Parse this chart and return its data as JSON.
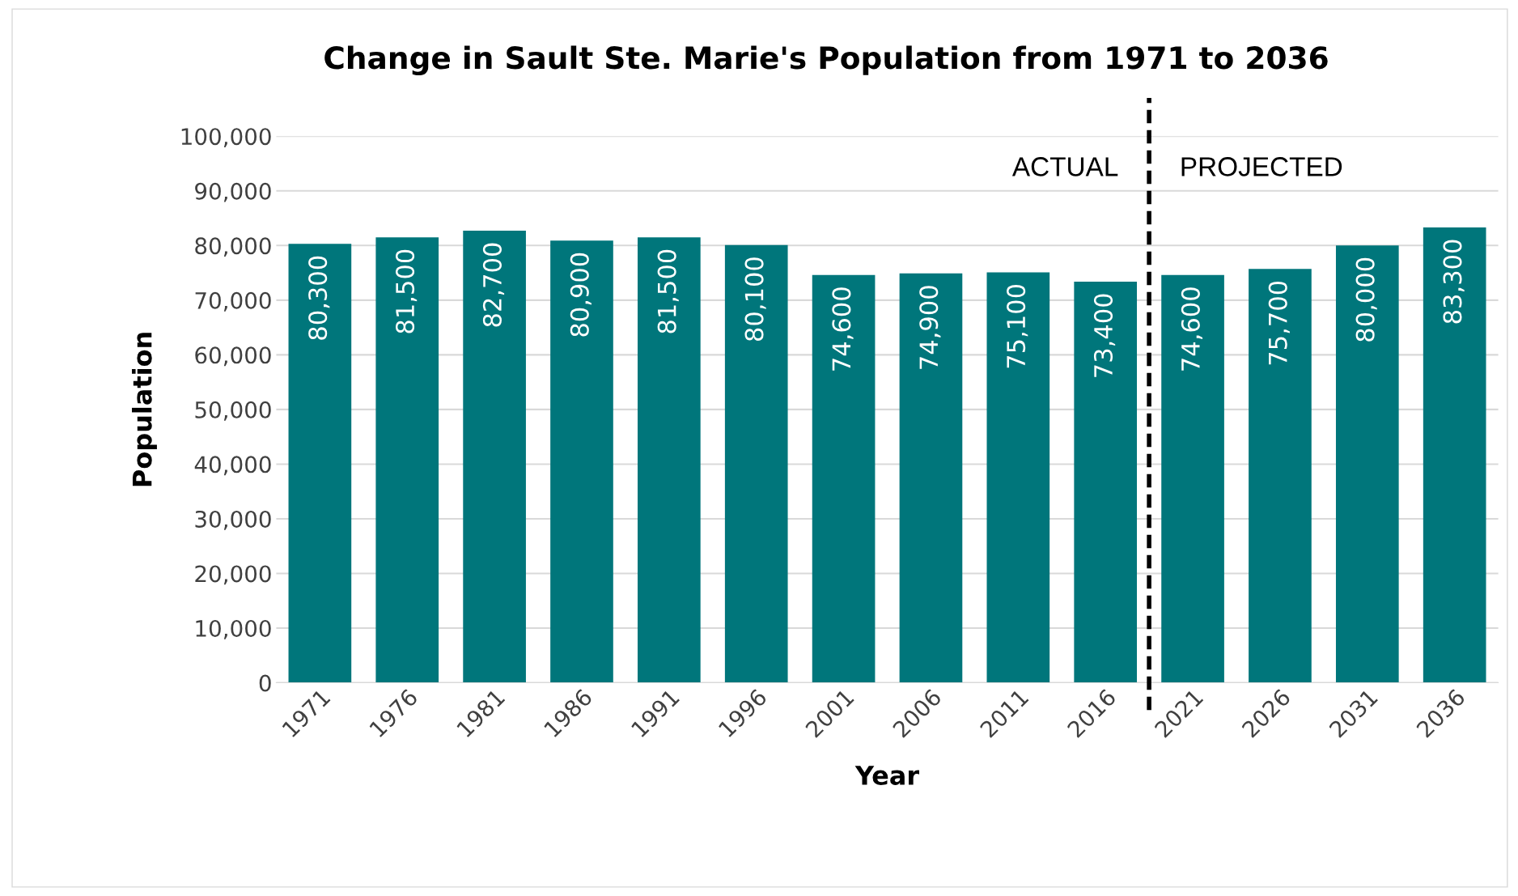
{
  "chart_data": {
    "type": "bar",
    "title": "Change in Sault Ste. Marie's Population from 1971 to 2036",
    "xlabel": "Year",
    "ylabel": "Population",
    "categories": [
      "1971",
      "1976",
      "1981",
      "1986",
      "1991",
      "1996",
      "2001",
      "2006",
      "2011",
      "2016",
      "2021",
      "2026",
      "2031",
      "2036"
    ],
    "values": [
      80300,
      81500,
      82700,
      80900,
      81500,
      80100,
      74600,
      74900,
      75100,
      73400,
      74600,
      75700,
      80000,
      83300
    ],
    "value_labels": [
      "80,300",
      "81,500",
      "82,700",
      "80,900",
      "81,500",
      "80,100",
      "74,600",
      "74,900",
      "75,100",
      "73,400",
      "74,600",
      "75,700",
      "80,000",
      "83,300"
    ],
    "color": "#00767b",
    "ylim": [
      0,
      100000
    ],
    "yticks": [
      0,
      {
        "value": 10000,
        "label": "10,000"
      },
      {
        "value": 20000,
        "label": "20,000"
      },
      {
        "value": 30000,
        "label": "30,000"
      },
      {
        "value": 40000,
        "label": "40,000"
      },
      {
        "value": 50000,
        "label": "50,000"
      },
      {
        "value": 60000,
        "label": "60,000"
      },
      {
        "value": 70000,
        "label": "70,000"
      },
      {
        "value": 80000,
        "label": "80,000"
      },
      {
        "value": 90000,
        "label": "90,000"
      },
      {
        "value": 100000,
        "label": "100,000"
      }
    ],
    "grid": "y",
    "ref_lines": [
      {
        "axis": "x",
        "value": "2021",
        "color": "#000000",
        "line_style": "dashed"
      }
    ],
    "annotations": [
      "ACTUAL",
      "PROJECTED"
    ]
  }
}
